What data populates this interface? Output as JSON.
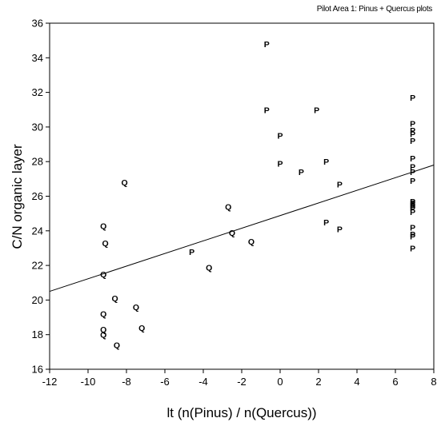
{
  "chart_data": {
    "type": "scatter",
    "annotation": "Pilot Area 1: Pinus + Quercus plots",
    "xlabel": "lt (n(Pinus) / n(Quercus))",
    "ylabel": "C/N organic layer",
    "xlim": [
      -12,
      8
    ],
    "ylim": [
      16,
      36
    ],
    "xticks": [
      -12,
      -10,
      -8,
      -6,
      -4,
      -2,
      0,
      2,
      4,
      6,
      8
    ],
    "yticks": [
      16,
      18,
      20,
      22,
      24,
      26,
      28,
      30,
      32,
      34,
      36
    ],
    "grid": false,
    "series": [
      {
        "name": "",
        "marker": "P",
        "points": [
          [
            -0.7,
            34.8
          ],
          [
            -0.7,
            31.0
          ],
          [
            1.9,
            31.0
          ],
          [
            6.9,
            31.7
          ],
          [
            0.0,
            29.5
          ],
          [
            6.9,
            30.2
          ],
          [
            6.9,
            29.8
          ],
          [
            6.9,
            29.6
          ],
          [
            6.9,
            29.2
          ],
          [
            0.0,
            27.9
          ],
          [
            1.1,
            27.4
          ],
          [
            2.4,
            28.0
          ],
          [
            6.9,
            28.2
          ],
          [
            6.9,
            27.7
          ],
          [
            6.9,
            27.4
          ],
          [
            3.1,
            26.7
          ],
          [
            6.9,
            26.9
          ],
          [
            6.9,
            25.7
          ],
          [
            6.9,
            25.6
          ],
          [
            6.9,
            25.5
          ],
          [
            6.9,
            25.4
          ],
          [
            6.9,
            25.3
          ],
          [
            6.9,
            25.1
          ],
          [
            2.4,
            24.5
          ],
          [
            3.1,
            24.1
          ],
          [
            6.9,
            24.2
          ],
          [
            6.9,
            23.8
          ],
          [
            6.9,
            23.7
          ],
          [
            6.9,
            23.0
          ],
          [
            -4.6,
            22.8
          ]
        ]
      },
      {
        "name": "",
        "marker": "Q",
        "points": [
          [
            -8.1,
            26.8
          ],
          [
            -2.7,
            25.4
          ],
          [
            -9.2,
            24.3
          ],
          [
            -2.5,
            23.9
          ],
          [
            -9.1,
            23.3
          ],
          [
            -1.5,
            23.4
          ],
          [
            -3.7,
            21.9
          ],
          [
            -9.2,
            21.5
          ],
          [
            -8.6,
            20.1
          ],
          [
            -7.5,
            19.6
          ],
          [
            -9.2,
            19.2
          ],
          [
            -7.2,
            18.4
          ],
          [
            -9.2,
            18.3
          ],
          [
            -9.2,
            18.0
          ],
          [
            -8.5,
            17.4
          ]
        ]
      }
    ],
    "regression_line": {
      "x": [
        -12,
        8
      ],
      "y": [
        20.5,
        27.8
      ]
    }
  }
}
